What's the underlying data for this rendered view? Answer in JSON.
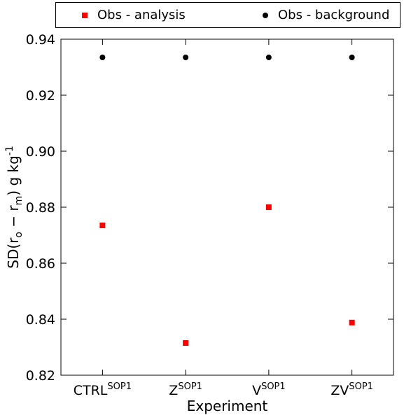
{
  "chart_data": {
    "type": "scatter",
    "categories": [
      "CTRL",
      "Z",
      "V",
      "ZV"
    ],
    "category_superscript": "SOP1",
    "series": [
      {
        "name": "Obs - analysis",
        "marker": "square",
        "color": "#ff0000",
        "values": [
          0.8735,
          0.8315,
          0.88,
          0.8388
        ]
      },
      {
        "name": "Obs - background",
        "marker": "circle",
        "color": "#000000",
        "values": [
          0.9335,
          0.9335,
          0.9335,
          0.9335
        ]
      }
    ],
    "xlabel": "Experiment",
    "ylabel": {
      "prefix": "SD(r",
      "sub1": "o",
      "mid": " − r",
      "sub2": "m",
      "suffix": ")  g kg",
      "sup": "-1"
    },
    "ylim": [
      0.82,
      0.94
    ],
    "yticks": [
      "0.82",
      "0.84",
      "0.86",
      "0.88",
      "0.90",
      "0.92",
      "0.94"
    ],
    "grid": false,
    "legend_placement": "top"
  }
}
